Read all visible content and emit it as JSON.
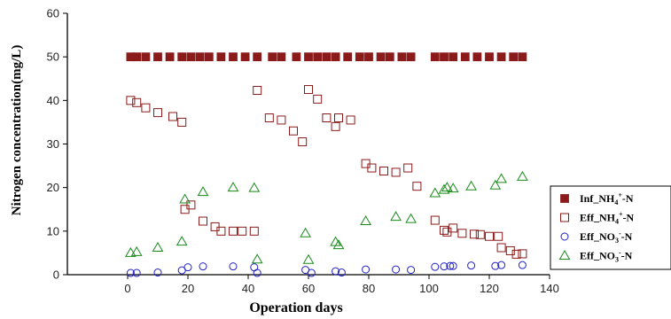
{
  "chart_data": {
    "type": "scatter",
    "xlabel": "Operation days",
    "ylabel": "Nitrogen concentration(mg/L)",
    "xlim": [
      -20,
      140
    ],
    "ylim": [
      0,
      60
    ],
    "xticks": [
      0,
      20,
      40,
      60,
      80,
      100,
      120,
      140
    ],
    "yticks": [
      0,
      10,
      20,
      30,
      40,
      50,
      60
    ],
    "grid": false,
    "legend_position": "right",
    "series": [
      {
        "name": "Inf_NH4+-N",
        "label_main": "Inf_NH",
        "label_sub": "4",
        "label_sup": "+",
        "label_tail": "-N",
        "marker": "filled-square",
        "color": "#8b1a1a",
        "x": [
          1,
          3,
          6,
          10,
          14,
          18,
          21,
          24,
          27,
          31,
          35,
          39,
          43,
          48,
          51,
          56,
          60,
          63,
          66,
          69,
          73,
          77,
          80,
          84,
          87,
          91,
          94,
          102,
          105,
          108,
          112,
          116,
          120,
          124,
          128,
          131
        ],
        "y": [
          50,
          50,
          50,
          50,
          50,
          50,
          50,
          50,
          50,
          50,
          50,
          50,
          50,
          50,
          50,
          50,
          50,
          50,
          50,
          50,
          50,
          50,
          50,
          50,
          50,
          50,
          50,
          50,
          50,
          50,
          50,
          50,
          50,
          50,
          50,
          50
        ]
      },
      {
        "name": "Eff_NH4+-N",
        "label_main": "Eff_NH",
        "label_sub": "4",
        "label_sup": "+",
        "label_tail": "-N",
        "marker": "open-square",
        "color": "#8b1a1a",
        "x": [
          1,
          3,
          6,
          10,
          15,
          18,
          19,
          21,
          25,
          29,
          31,
          35,
          38,
          42,
          43,
          47,
          51,
          55,
          58,
          60,
          63,
          66,
          69,
          70,
          74,
          79,
          81,
          85,
          89,
          93,
          96,
          102,
          105,
          106,
          108,
          111,
          115,
          117,
          120,
          123,
          124,
          127,
          129,
          131
        ],
        "y": [
          40,
          39.5,
          38.3,
          37.2,
          36.3,
          35,
          15,
          16,
          12.3,
          11,
          10,
          10,
          10,
          10,
          42.3,
          36,
          35.5,
          33,
          30.5,
          42.5,
          40.3,
          36,
          34,
          36,
          35.5,
          25.5,
          24.5,
          23.8,
          23.5,
          24.5,
          20.3,
          12.5,
          10.2,
          9.8,
          10.7,
          9.5,
          9.3,
          9.2,
          8.8,
          8.8,
          6.2,
          5.5,
          4.7,
          4.8
        ]
      },
      {
        "name": "Eff_NO3--N",
        "label_main": "Eff_NO",
        "label_sub": "3",
        "label_sup": "-",
        "label_tail": "-N",
        "marker": "open-circle",
        "color": "#1f1fc8",
        "x": [
          1,
          3,
          10,
          18,
          20,
          25,
          35,
          42,
          43,
          59,
          61,
          69,
          71,
          79,
          89,
          94,
          102,
          105,
          107,
          108,
          114,
          122,
          124,
          131
        ],
        "y": [
          0.4,
          0.4,
          0.5,
          1,
          1.7,
          1.9,
          1.9,
          1.7,
          0.4,
          1.1,
          0.4,
          0.8,
          0.5,
          1.2,
          1.2,
          1.1,
          1.8,
          1.9,
          2,
          2,
          2.1,
          2,
          2.2,
          2.2
        ]
      },
      {
        "name": "Eff_NO3--N",
        "label_main": "Eff_NO",
        "label_sub": "3",
        "label_sup": "-",
        "label_tail": "-N",
        "marker": "open-triangle",
        "color": "#1a8a1a",
        "x": [
          1,
          3,
          10,
          18,
          19,
          25,
          35,
          42,
          43,
          59,
          60,
          69,
          70,
          79,
          89,
          94,
          102,
          105,
          106,
          108,
          114,
          122,
          124,
          131
        ],
        "y": [
          5,
          5.2,
          6.2,
          7.6,
          17.3,
          19,
          20,
          19.9,
          3.5,
          9.5,
          3.4,
          7.5,
          6.8,
          12.3,
          13.3,
          12.8,
          18.7,
          19.5,
          20,
          19.8,
          20.3,
          20.5,
          22,
          22.5
        ]
      }
    ]
  }
}
